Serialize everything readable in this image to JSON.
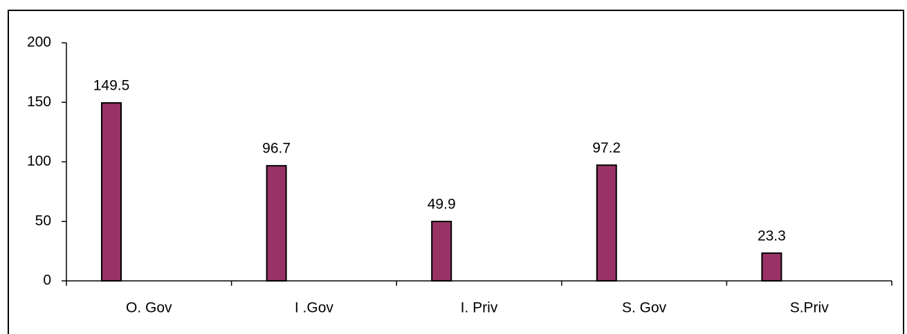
{
  "chart_data": {
    "type": "bar",
    "categories": [
      "O. Gov",
      "I .Gov",
      "I. Priv",
      "S. Gov",
      "S.Priv"
    ],
    "values": [
      149.5,
      96.7,
      49.9,
      97.2,
      23.3
    ],
    "color": "#993366",
    "ylim": [
      0,
      200
    ],
    "yticks": [
      0,
      50,
      100,
      150,
      200
    ],
    "grid": false
  }
}
